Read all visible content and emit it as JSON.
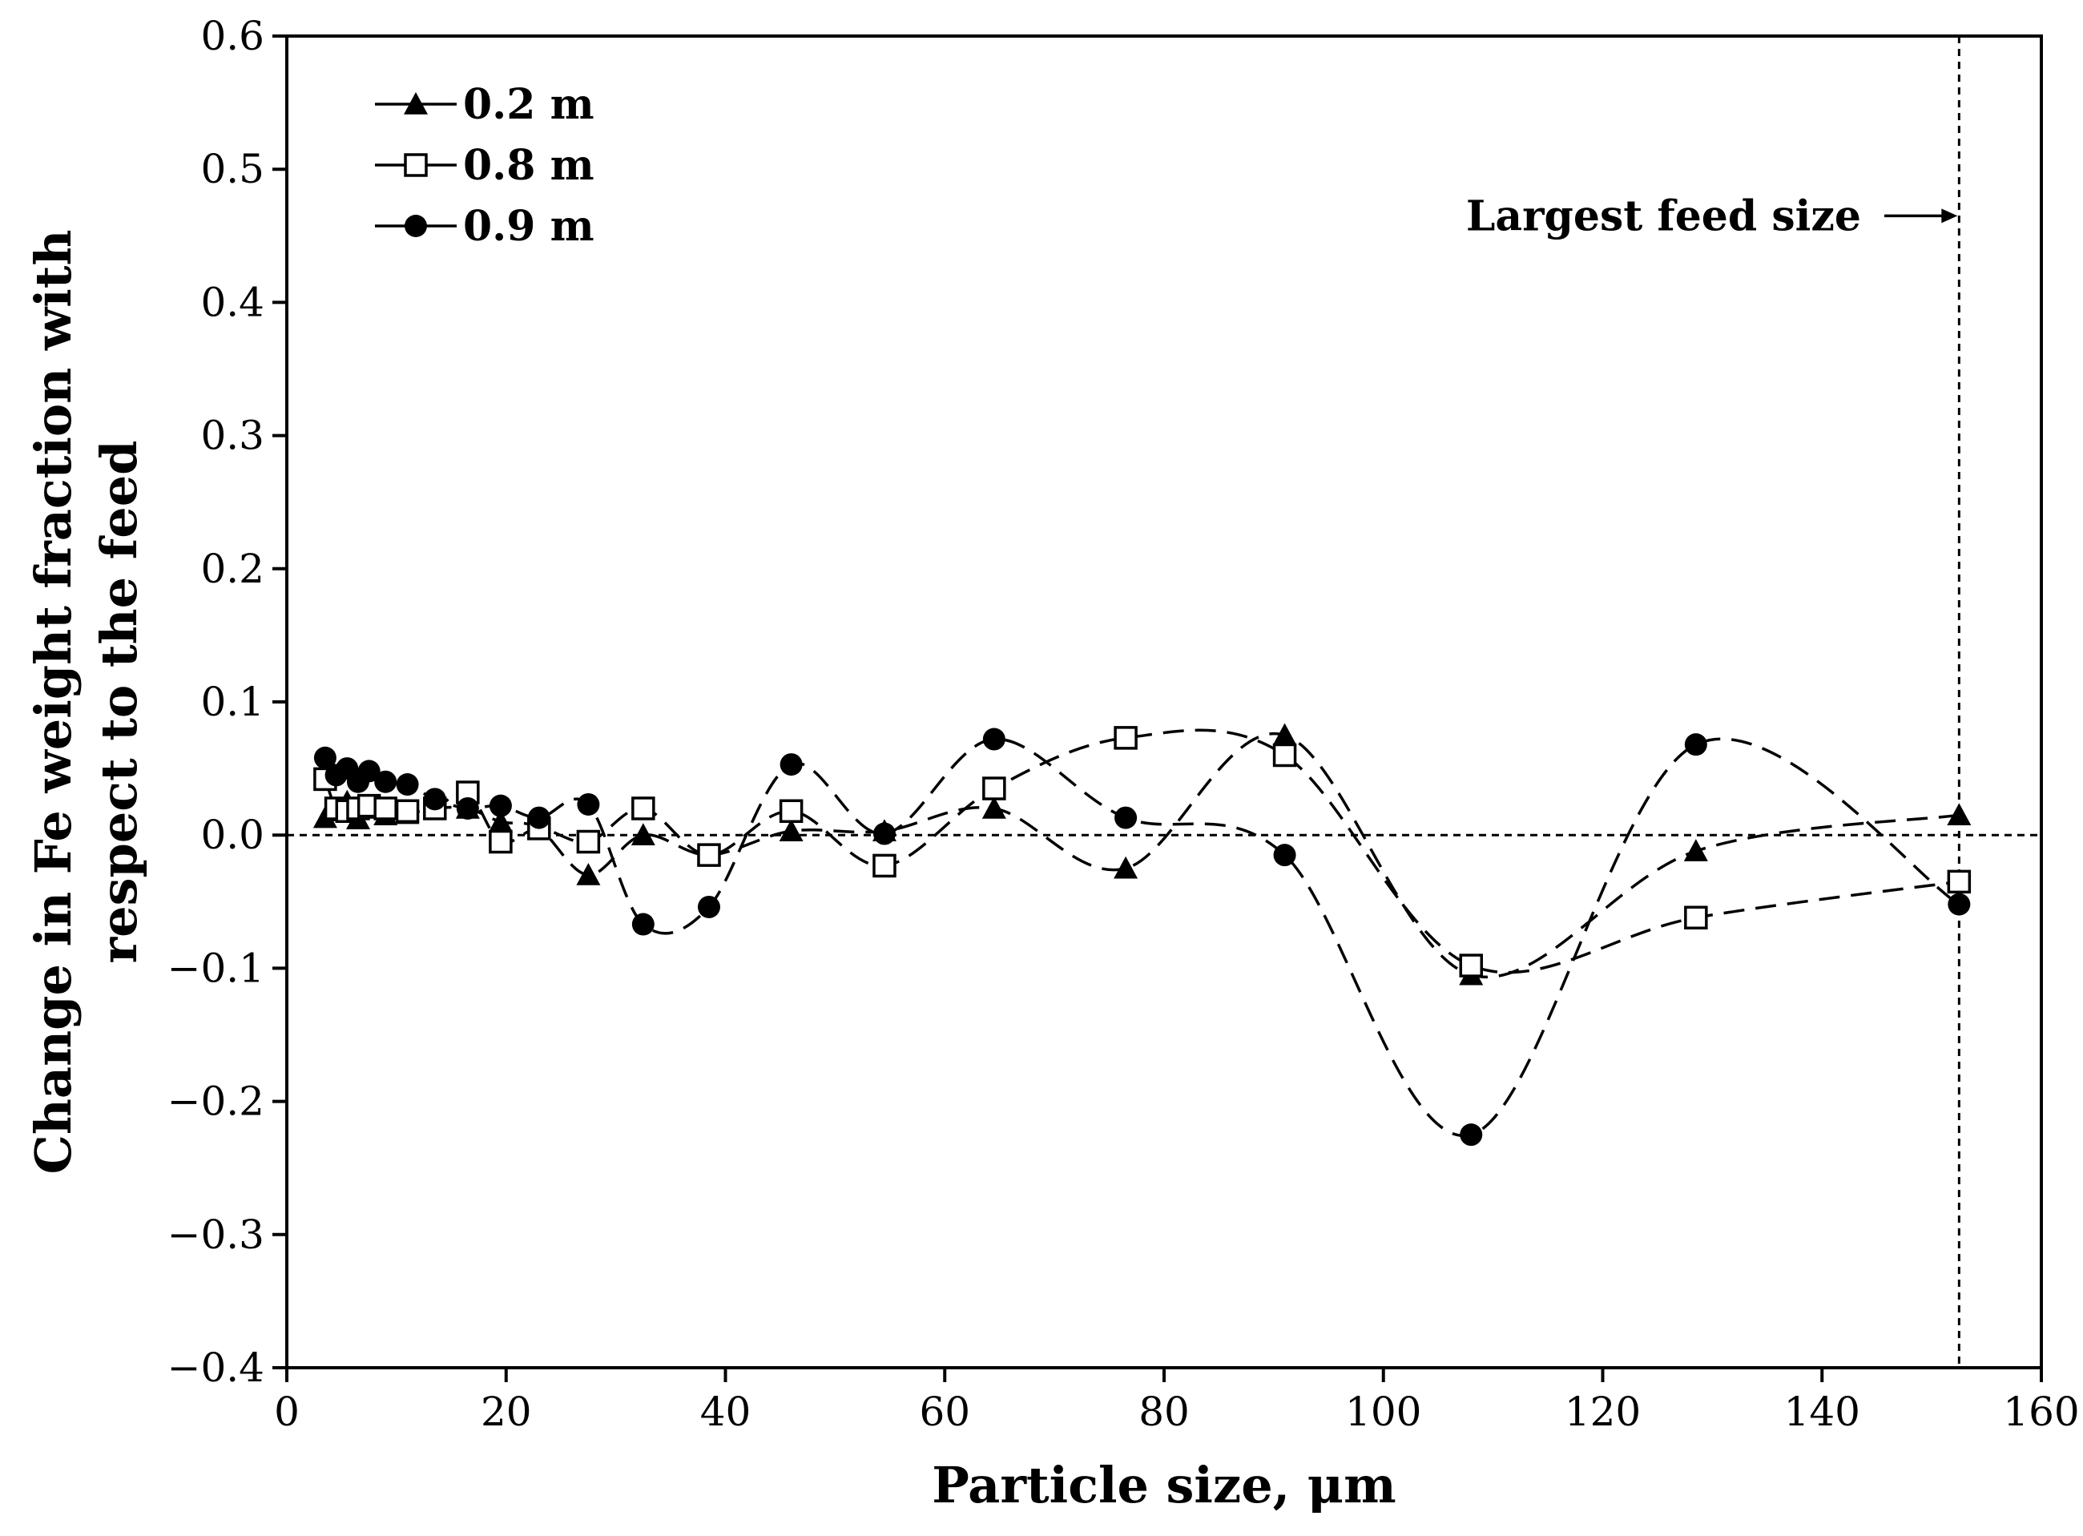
{
  "chart_data": {
    "type": "scatter",
    "title": "",
    "xlabel": "Particle size, μm",
    "ylabel_lines": [
      "Change in Fe weight fraction with",
      "respect to the feed"
    ],
    "xlim": [
      0,
      160
    ],
    "ylim": [
      -0.4,
      0.6
    ],
    "xticks": [
      0,
      20,
      40,
      60,
      80,
      100,
      120,
      140,
      160
    ],
    "yticks": [
      -0.4,
      -0.3,
      -0.2,
      -0.1,
      0.0,
      0.1,
      0.2,
      0.3,
      0.4,
      0.5,
      0.6
    ],
    "xtick_labels": [
      "0",
      "20",
      "40",
      "60",
      "80",
      "100",
      "120",
      "140",
      "160"
    ],
    "ytick_labels": [
      "−0.4",
      "−0.3",
      "−0.2",
      "−0.1",
      "0.0",
      "0.1",
      "0.2",
      "0.3",
      "0.4",
      "0.5",
      "0.6"
    ],
    "grid": false,
    "legend_position": "top-left",
    "reference_lines": [
      {
        "orientation": "horizontal",
        "value": 0.0,
        "style": "dotted"
      },
      {
        "orientation": "vertical",
        "value": 152.5,
        "style": "dotted"
      }
    ],
    "annotations": [
      {
        "text": "Largest feed size",
        "points_to_x": 152.5,
        "y": 0.465
      }
    ],
    "series": [
      {
        "name": "0.2 m",
        "marker": "triangle",
        "x": [
          3.5,
          4.5,
          5.5,
          6.5,
          7.5,
          9,
          11,
          13.5,
          16.5,
          19.5,
          23,
          27.5,
          32.5,
          38.5,
          46,
          54.5,
          64.5,
          76.5,
          91,
          108,
          128.5,
          152.5
        ],
        "values": [
          0.013,
          0.018,
          0.025,
          0.012,
          0.02,
          0.015,
          0.016,
          0.02,
          0.02,
          0.01,
          0.005,
          -0.03,
          0.0,
          -0.015,
          0.003,
          0.003,
          0.02,
          -0.025,
          0.075,
          -0.105,
          -0.012,
          0.015
        ]
      },
      {
        "name": "0.8 m",
        "marker": "open-square",
        "x": [
          3.5,
          4.5,
          5.5,
          6.5,
          7.5,
          9,
          11,
          13.5,
          16.5,
          19.5,
          23,
          27.5,
          32.5,
          38.5,
          46,
          54.5,
          64.5,
          76.5,
          91,
          108,
          128.5,
          152.5
        ],
        "values": [
          0.042,
          0.02,
          0.018,
          0.02,
          0.022,
          0.02,
          0.018,
          0.02,
          0.032,
          -0.005,
          0.005,
          -0.005,
          0.02,
          -0.015,
          0.018,
          -0.023,
          0.035,
          0.073,
          0.06,
          -0.098,
          -0.062,
          -0.035
        ]
      },
      {
        "name": "0.9 m",
        "marker": "filled-circle",
        "x": [
          3.5,
          4.5,
          5.5,
          6.5,
          7.5,
          9,
          11,
          13.5,
          16.5,
          19.5,
          23,
          27.5,
          32.5,
          38.5,
          46,
          54.5,
          64.5,
          76.5,
          91,
          108,
          128.5,
          152.5
        ],
        "values": [
          0.058,
          0.045,
          0.05,
          0.04,
          0.048,
          0.04,
          0.038,
          0.027,
          0.02,
          0.022,
          0.013,
          0.023,
          -0.067,
          -0.054,
          0.053,
          0.001,
          0.072,
          0.013,
          -0.015,
          -0.225,
          0.068,
          -0.052
        ]
      }
    ]
  }
}
